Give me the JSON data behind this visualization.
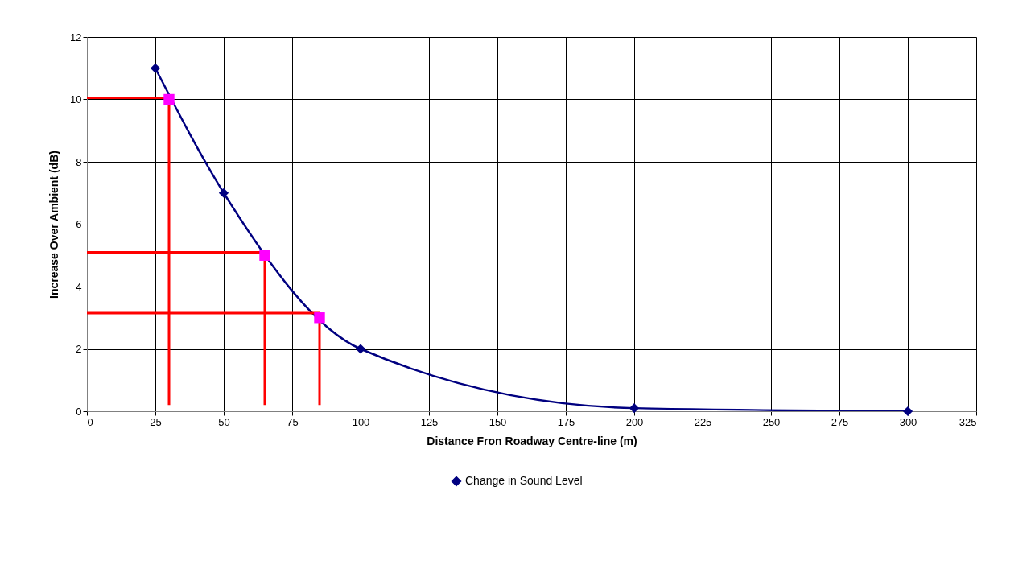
{
  "chart_data": {
    "type": "line",
    "xlabel": "Distance Fron Roadway Centre-line (m)",
    "ylabel": "Increase Over Ambient (dB)",
    "xlim": [
      0,
      325
    ],
    "xticks": [
      0,
      25,
      50,
      75,
      100,
      125,
      150,
      175,
      200,
      225,
      250,
      275,
      300,
      325
    ],
    "ylim": [
      0,
      12
    ],
    "yticks": [
      0,
      2,
      4,
      6,
      8,
      10,
      12
    ],
    "grid": true,
    "legend": "bottom",
    "series": [
      {
        "name": "Change in Sound Level",
        "color": "#000080",
        "marker": "diamond",
        "x": [
          25,
          50,
          100,
          200,
          300
        ],
        "values": [
          11,
          7,
          2,
          0.1,
          0
        ]
      },
      {
        "type": "line",
        "color": "#ff0000",
        "marker": "none",
        "x": [
          0,
          30,
          30
        ],
        "values": [
          10.05,
          10.05,
          0.2
        ]
      },
      {
        "type": "line",
        "color": "#ff0000",
        "marker": "none",
        "x": [
          0,
          65,
          65
        ],
        "values": [
          5.1,
          5.1,
          0.2
        ]
      },
      {
        "type": "line",
        "color": "#ff0000",
        "marker": "none",
        "x": [
          0,
          85,
          85
        ],
        "values": [
          3.15,
          3.15,
          0.2
        ]
      },
      {
        "type": "scatter",
        "color": "#ff00ff",
        "marker": "square",
        "x": [
          30,
          65,
          85
        ],
        "values": [
          10,
          5,
          3
        ]
      }
    ]
  }
}
